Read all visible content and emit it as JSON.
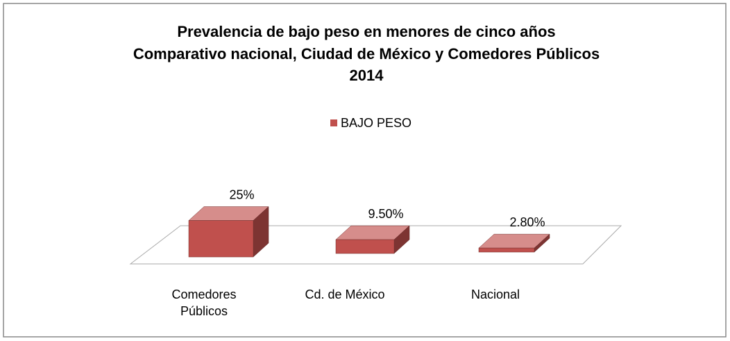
{
  "chart_data": {
    "type": "bar3d",
    "title": [
      "Prevalencia de bajo peso en menores de cinco años",
      "Comparativo nacional, Ciudad de México y Comedores Públicos",
      "2014"
    ],
    "categories": [
      "Comedores Públicos",
      "Cd. de México",
      "Nacional"
    ],
    "series": [
      {
        "name": "BAJO PESO",
        "color": "#c0504d",
        "values": [
          25,
          9.5,
          2.8
        ],
        "value_labels": [
          "25%",
          "9.50%",
          "2.80%"
        ]
      }
    ],
    "legend": "top"
  }
}
